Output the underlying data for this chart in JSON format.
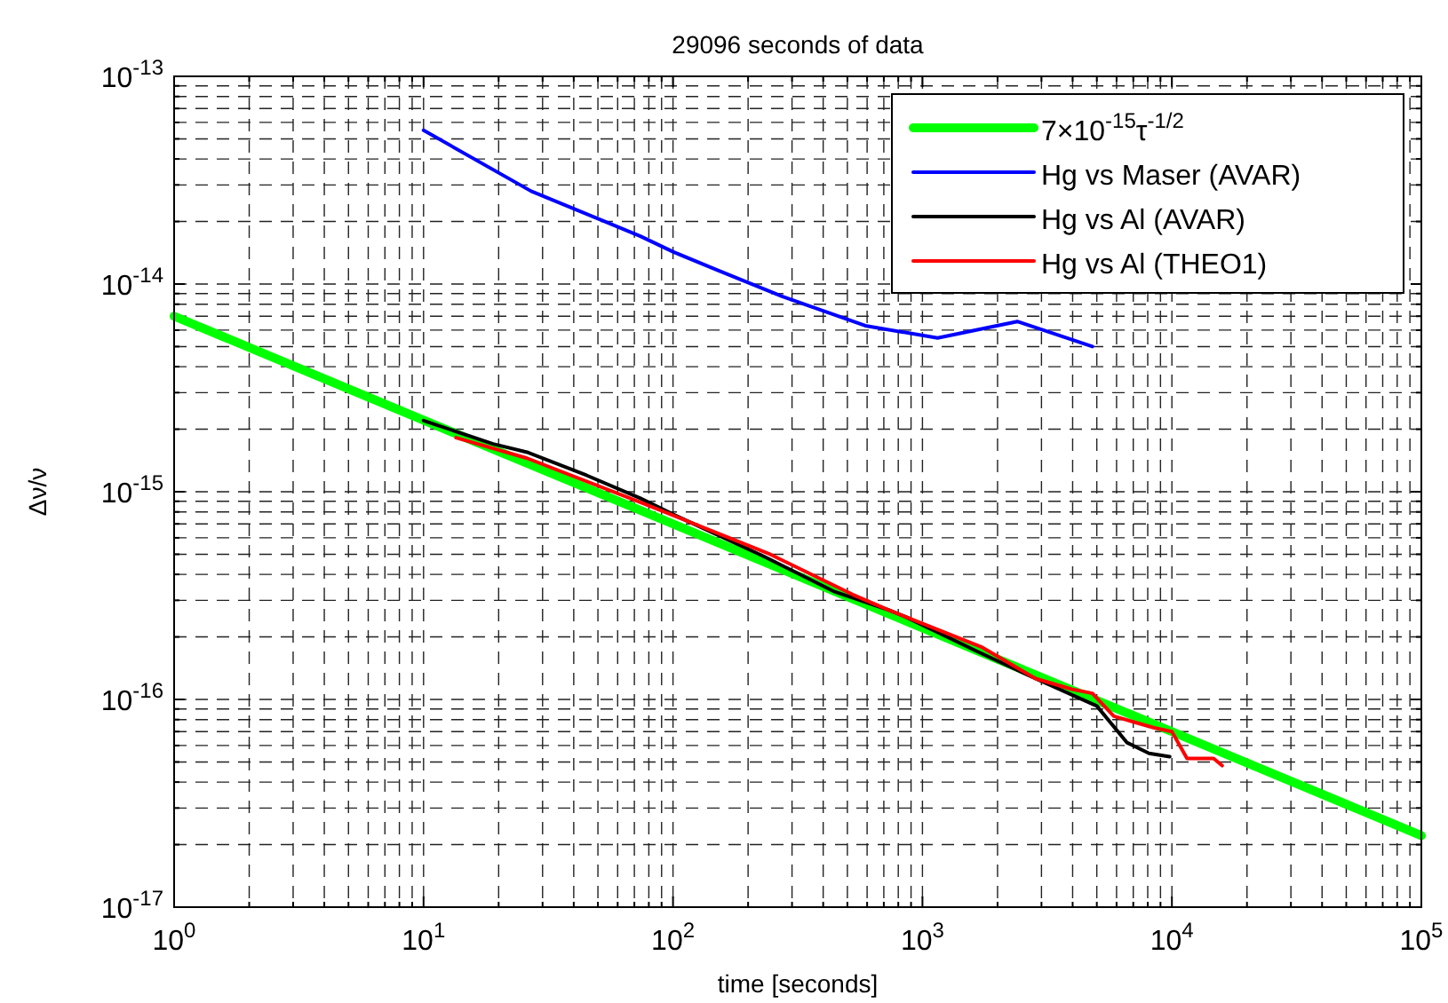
{
  "chart_data": {
    "type": "line",
    "title": "29096 seconds of data",
    "xlabel": "time [seconds]",
    "ylabel": "Δν/ν",
    "log": "xy",
    "grid": true,
    "legend": "top right",
    "xlim": [
      1,
      100000
    ],
    "ylim": [
      1e-17,
      1e-13
    ],
    "xticks": [
      {
        "value": 1,
        "label": "10$^{0}$"
      },
      {
        "value": 2,
        "label": null
      },
      {
        "value": 3,
        "label": null
      },
      {
        "value": 4,
        "label": null
      },
      {
        "value": 5,
        "label": null
      },
      {
        "value": 6,
        "label": null
      },
      {
        "value": 7,
        "label": null
      },
      {
        "value": 8,
        "label": null
      },
      {
        "value": 9,
        "label": null
      },
      {
        "value": 10,
        "label": "10$^{1}$"
      },
      {
        "value": 20,
        "label": null
      },
      {
        "value": 30,
        "label": null
      },
      {
        "value": 40,
        "label": null
      },
      {
        "value": 50,
        "label": null
      },
      {
        "value": 60,
        "label": null
      },
      {
        "value": 70,
        "label": null
      },
      {
        "value": 80,
        "label": null
      },
      {
        "value": 90,
        "label": null
      },
      {
        "value": 100,
        "label": "10$^{2}$"
      },
      {
        "value": 200,
        "label": null
      },
      {
        "value": 300,
        "label": null
      },
      {
        "value": 400,
        "label": null
      },
      {
        "value": 500,
        "label": null
      },
      {
        "value": 600,
        "label": null
      },
      {
        "value": 700,
        "label": null
      },
      {
        "value": 800,
        "label": null
      },
      {
        "value": 900,
        "label": null
      },
      {
        "value": 1000,
        "label": "10$^{3}$"
      },
      {
        "value": 2000,
        "label": null
      },
      {
        "value": 3000,
        "label": null
      },
      {
        "value": 4000,
        "label": null
      },
      {
        "value": 5000,
        "label": null
      },
      {
        "value": 6000,
        "label": null
      },
      {
        "value": 7000,
        "label": null
      },
      {
        "value": 8000,
        "label": null
      },
      {
        "value": 9000,
        "label": null
      },
      {
        "value": 10000,
        "label": "10$^{4}$"
      },
      {
        "value": 20000,
        "label": null
      },
      {
        "value": 30000,
        "label": null
      },
      {
        "value": 40000,
        "label": null
      },
      {
        "value": 50000,
        "label": null
      },
      {
        "value": 60000,
        "label": null
      },
      {
        "value": 70000,
        "label": null
      },
      {
        "value": 80000,
        "label": null
      },
      {
        "value": 90000,
        "label": null
      },
      {
        "value": 100000,
        "label": "10$^{5}$"
      }
    ],
    "yticks": [
      {
        "value": 1e-17,
        "label": "10$^{-17}$"
      },
      {
        "value": 2e-17,
        "label": null
      },
      {
        "value": 3e-17,
        "label": null
      },
      {
        "value": 4e-17,
        "label": null
      },
      {
        "value": 5e-17,
        "label": null
      },
      {
        "value": 6e-17,
        "label": null
      },
      {
        "value": 7e-17,
        "label": null
      },
      {
        "value": 8e-17,
        "label": null
      },
      {
        "value": 9e-17,
        "label": null
      },
      {
        "value": 1e-16,
        "label": "10$^{-16}$"
      },
      {
        "value": 2e-16,
        "label": null
      },
      {
        "value": 3e-16,
        "label": null
      },
      {
        "value": 4e-16,
        "label": null
      },
      {
        "value": 5e-16,
        "label": null
      },
      {
        "value": 6e-16,
        "label": null
      },
      {
        "value": 7e-16,
        "label": null
      },
      {
        "value": 8e-16,
        "label": null
      },
      {
        "value": 9e-16,
        "label": null
      },
      {
        "value": 1e-15,
        "label": "10$^{-15}$"
      },
      {
        "value": 2e-15,
        "label": null
      },
      {
        "value": 3e-15,
        "label": null
      },
      {
        "value": 4e-15,
        "label": null
      },
      {
        "value": 5e-15,
        "label": null
      },
      {
        "value": 6e-15,
        "label": null
      },
      {
        "value": 7e-15,
        "label": null
      },
      {
        "value": 8e-15,
        "label": null
      },
      {
        "value": 9e-15,
        "label": null
      },
      {
        "value": 1e-14,
        "label": "10$^{-14}$"
      },
      {
        "value": 2e-14,
        "label": null
      },
      {
        "value": 3e-14,
        "label": null
      },
      {
        "value": 4e-14,
        "label": null
      },
      {
        "value": 5e-14,
        "label": null
      },
      {
        "value": 6e-14,
        "label": null
      },
      {
        "value": 7e-14,
        "label": null
      },
      {
        "value": 8e-14,
        "label": null
      },
      {
        "value": 9e-14,
        "label": null
      },
      {
        "value": 1e-13,
        "label": "10$^{-13}$"
      }
    ],
    "series": [
      {
        "name": "7×10$^{-15}$τ$^{-1/2}$",
        "color": "#00ff00",
        "x": [
          1,
          10,
          100,
          1000,
          10000,
          100000
        ],
        "values": [
          7e-15,
          2.21e-15,
          7e-16,
          2.21e-16,
          7e-17,
          2.21e-17
        ]
      },
      {
        "name": "Hg vs Maser (AVAR)",
        "color": "#0000ff",
        "x": [
          10,
          27,
          74,
          100,
          150,
          275,
          590,
          1150,
          2400,
          4800
        ],
        "values": [
          5.5e-14,
          2.8e-14,
          1.7e-14,
          1.43e-14,
          1.17e-14,
          8.7e-15,
          6.3e-15,
          5.5e-15,
          6.6e-15,
          5e-15
        ]
      },
      {
        "name": "Hg vs Al (AVAR)",
        "color": "#000000",
        "x": [
          10,
          19,
          26,
          45,
          74,
          102,
          230,
          445,
          730,
          855,
          1660,
          2840,
          5000,
          6600,
          8100,
          9800
        ],
        "values": [
          2.2e-15,
          1.7e-15,
          1.55e-15,
          1.2e-15,
          9.3e-16,
          7.7e-16,
          4.9e-16,
          3.3e-16,
          2.7e-16,
          2.5e-16,
          1.7e-16,
          1.26e-16,
          9.3e-17,
          6.2e-17,
          5.5e-17,
          5.3e-17
        ]
      },
      {
        "name": "Hg vs Al (THEO1)",
        "color": "#ff0000",
        "x": [
          13.5,
          26,
          74,
          245,
          525,
          730,
          855,
          1740,
          2840,
          3970,
          4800,
          5850,
          8500,
          10000,
          11500,
          14700,
          15900
        ],
        "values": [
          1.82e-15,
          1.45e-15,
          8.9e-16,
          5e-16,
          3.2e-16,
          2.7e-16,
          2.5e-16,
          1.78e-16,
          1.26e-16,
          1.12e-16,
          1.07e-16,
          8.3e-17,
          7.3e-17,
          7e-17,
          5.2e-17,
          5.2e-17,
          4.8e-17
        ]
      }
    ]
  }
}
